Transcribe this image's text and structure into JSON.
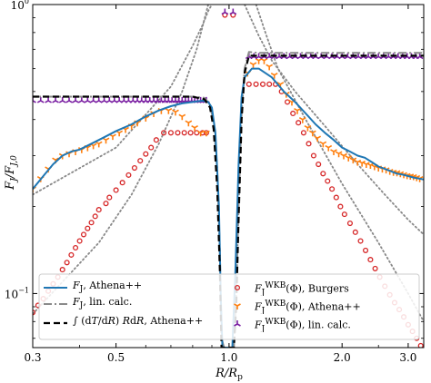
{
  "chart_data": {
    "type": "line",
    "xscale": "log",
    "yscale": "log",
    "xlim": [
      0.3,
      3.3
    ],
    "ylim": [
      0.065,
      1.0
    ],
    "xlabel": "R/R_p",
    "ylabel": "F_J/F_{J,0}",
    "xticks": [
      {
        "value": 0.3,
        "label": "0.3"
      },
      {
        "value": 0.5,
        "label": "0.5"
      },
      {
        "value": 1.0,
        "label": "1.0"
      },
      {
        "value": 2.0,
        "label": "2.0"
      },
      {
        "value": 3.0,
        "label": "3.0"
      }
    ],
    "yticks": [
      {
        "value": 0.1,
        "label": "10",
        "exponent": "−1"
      },
      {
        "value": 1.0,
        "label": "10",
        "exponent": "0"
      }
    ],
    "legend_position": "lower center",
    "series": [
      {
        "name": "F_J, Athena++",
        "legend_html": "𝐹<sub>J</sub>, Athena++",
        "kind": "line",
        "color": "#1f77b4",
        "dash": "none",
        "width": 2,
        "x": [
          0.3,
          0.32,
          0.34,
          0.36,
          0.38,
          0.4,
          0.43,
          0.46,
          0.5,
          0.55,
          0.6,
          0.65,
          0.7,
          0.75,
          0.8,
          0.85,
          0.88,
          0.9,
          0.92,
          0.94,
          0.95,
          0.96,
          0.97,
          0.98,
          1.0,
          1.02,
          1.04,
          1.06,
          1.08,
          1.1,
          1.15,
          1.2,
          1.3,
          1.4,
          1.5,
          1.6,
          1.7,
          1.8,
          1.9,
          2.0,
          2.1,
          2.2,
          2.3,
          2.4,
          2.5,
          2.6,
          2.7,
          2.8,
          2.9,
          3.0,
          3.1,
          3.2,
          3.3
        ],
        "y": [
          0.23,
          0.255,
          0.28,
          0.3,
          0.31,
          0.315,
          0.33,
          0.345,
          0.365,
          0.385,
          0.41,
          0.43,
          0.445,
          0.455,
          0.46,
          0.465,
          0.46,
          0.44,
          0.36,
          0.2,
          0.1,
          0.065,
          0.065,
          0.065,
          0.065,
          0.065,
          0.12,
          0.28,
          0.48,
          0.56,
          0.6,
          0.6,
          0.56,
          0.5,
          0.46,
          0.42,
          0.385,
          0.36,
          0.34,
          0.32,
          0.31,
          0.3,
          0.295,
          0.285,
          0.275,
          0.27,
          0.265,
          0.26,
          0.258,
          0.255,
          0.252,
          0.25,
          0.248
        ]
      },
      {
        "name": "F_J, lin. calc.",
        "legend_html": "𝐹<sub>J</sub>, lin. calc.",
        "kind": "line",
        "color": "#8a8a8a",
        "dash": "9,3,2,3",
        "width": 2,
        "x": [
          0.3,
          0.4,
          0.5,
          0.6,
          0.7,
          0.8,
          0.86,
          0.89,
          0.91,
          0.93,
          0.945,
          0.955,
          0.97,
          1.0,
          1.03,
          1.045,
          1.06,
          1.08,
          1.1,
          1.13,
          1.2,
          1.5,
          2.0,
          2.5,
          3.0,
          3.3
        ],
        "y": [
          0.48,
          0.48,
          0.48,
          0.48,
          0.48,
          0.48,
          0.475,
          0.45,
          0.39,
          0.27,
          0.14,
          0.07,
          0.065,
          0.065,
          0.065,
          0.1,
          0.2,
          0.42,
          0.6,
          0.685,
          0.68,
          0.68,
          0.68,
          0.68,
          0.68,
          0.68
        ]
      },
      {
        "name": "∫ dT/dR R dR, Athena++",
        "legend_html": "∫ (d𝑇/d𝑅) 𝑅d𝑅, Athena++",
        "kind": "line",
        "color": "#000000",
        "dash": "7,4",
        "width": 2.2,
        "x": [
          0.3,
          0.4,
          0.5,
          0.6,
          0.7,
          0.8,
          0.86,
          0.89,
          0.91,
          0.93,
          0.945,
          0.955,
          0.97,
          1.0,
          1.03,
          1.045,
          1.06,
          1.08,
          1.1,
          1.13,
          1.2,
          1.5,
          2.0,
          2.5,
          3.0,
          3.3
        ],
        "y": [
          0.48,
          0.48,
          0.48,
          0.48,
          0.48,
          0.48,
          0.47,
          0.44,
          0.37,
          0.23,
          0.12,
          0.065,
          0.065,
          0.065,
          0.065,
          0.09,
          0.18,
          0.4,
          0.58,
          0.665,
          0.665,
          0.665,
          0.665,
          0.665,
          0.665,
          0.665
        ]
      },
      {
        "name": "F_J^WKB(Φ), Burgers",
        "legend_html": "𝐹<sub>J</sub><sup>WKB</sup>(Φ), Burgers",
        "kind": "marker",
        "marker": "circle",
        "color": "#d62728",
        "x": [
          0.3,
          0.31,
          0.32,
          0.33,
          0.34,
          0.35,
          0.36,
          0.37,
          0.38,
          0.39,
          0.4,
          0.41,
          0.42,
          0.43,
          0.44,
          0.45,
          0.47,
          0.48,
          0.5,
          0.52,
          0.54,
          0.56,
          0.58,
          0.6,
          0.62,
          0.64,
          0.67,
          0.7,
          0.73,
          0.76,
          0.79,
          0.82,
          0.85,
          0.87,
          1.13,
          1.18,
          1.23,
          1.28,
          1.33,
          1.38,
          1.43,
          1.48,
          1.53,
          1.58,
          1.63,
          1.68,
          1.73,
          1.78,
          1.83,
          1.88,
          1.93,
          1.98,
          2.03,
          2.1,
          2.17,
          2.24,
          2.31,
          2.38,
          2.45,
          2.52,
          2.6,
          2.68,
          2.76,
          2.84,
          2.92,
          3.0,
          3.08,
          3.16,
          3.24
        ],
        "y": [
          0.086,
          0.091,
          0.096,
          0.102,
          0.108,
          0.114,
          0.121,
          0.128,
          0.136,
          0.144,
          0.152,
          0.16,
          0.168,
          0.176,
          0.185,
          0.195,
          0.205,
          0.215,
          0.228,
          0.242,
          0.257,
          0.272,
          0.288,
          0.304,
          0.32,
          0.34,
          0.36,
          0.36,
          0.36,
          0.36,
          0.36,
          0.36,
          0.36,
          0.36,
          0.53,
          0.53,
          0.53,
          0.53,
          0.53,
          0.5,
          0.46,
          0.42,
          0.39,
          0.36,
          0.33,
          0.3,
          0.28,
          0.26,
          0.245,
          0.23,
          0.215,
          0.2,
          0.188,
          0.175,
          0.163,
          0.152,
          0.141,
          0.131,
          0.122,
          0.114,
          0.106,
          0.099,
          0.093,
          0.088,
          0.083,
          0.078,
          0.074,
          0.07,
          0.066
        ]
      },
      {
        "name": "F_J^WKB(Φ), Athena++",
        "legend_html": "𝐹<sub>J</sub><sup>WKB</sup>(Φ), Athena++",
        "kind": "marker",
        "marker": "tri_down",
        "color": "#ff7f0e",
        "x": [
          0.3,
          0.315,
          0.33,
          0.345,
          0.36,
          0.375,
          0.39,
          0.405,
          0.42,
          0.435,
          0.45,
          0.47,
          0.49,
          0.51,
          0.53,
          0.55,
          0.57,
          0.6,
          0.63,
          0.66,
          0.69,
          0.72,
          0.75,
          0.78,
          0.81,
          0.84,
          0.87,
          1.12,
          1.16,
          1.2,
          1.24,
          1.28,
          1.32,
          1.37,
          1.42,
          1.47,
          1.52,
          1.57,
          1.62,
          1.67,
          1.72,
          1.78,
          1.84,
          1.9,
          1.96,
          2.02,
          2.08,
          2.14,
          2.2,
          2.26,
          2.32,
          2.38,
          2.44,
          2.5,
          2.56,
          2.62,
          2.68,
          2.74,
          2.8,
          2.86,
          2.92,
          2.98,
          3.04,
          3.1,
          3.16,
          3.22
        ],
        "y": [
          0.23,
          0.25,
          0.27,
          0.29,
          0.3,
          0.305,
          0.31,
          0.315,
          0.32,
          0.325,
          0.33,
          0.34,
          0.35,
          0.36,
          0.37,
          0.38,
          0.39,
          0.405,
          0.42,
          0.43,
          0.43,
          0.425,
          0.41,
          0.39,
          0.375,
          0.36,
          0.36,
          0.58,
          0.62,
          0.64,
          0.64,
          0.61,
          0.57,
          0.53,
          0.49,
          0.46,
          0.43,
          0.4,
          0.375,
          0.36,
          0.345,
          0.33,
          0.32,
          0.31,
          0.305,
          0.3,
          0.295,
          0.29,
          0.285,
          0.283,
          0.28,
          0.278,
          0.275,
          0.272,
          0.27,
          0.268,
          0.265,
          0.263,
          0.262,
          0.26,
          0.258,
          0.256,
          0.255,
          0.254,
          0.252,
          0.25
        ]
      },
      {
        "name": "F_J^WKB(Φ), lin. calc.",
        "legend_html": "𝐹<sub>J</sub><sup>WKB</sup>(Φ), lin. calc.",
        "kind": "marker",
        "marker": "tri_up",
        "color": "#7a1fa2",
        "x": [
          0.3,
          0.315,
          0.33,
          0.345,
          0.36,
          0.375,
          0.39,
          0.405,
          0.42,
          0.435,
          0.45,
          0.465,
          0.48,
          0.495,
          0.51,
          0.525,
          0.54,
          0.555,
          0.57,
          0.585,
          0.6,
          0.615,
          0.63,
          0.645,
          0.66,
          0.675,
          0.69,
          0.705,
          0.72,
          0.735,
          0.75,
          0.765,
          0.78,
          0.795,
          0.81,
          0.825,
          0.84,
          0.855,
          0.87,
          1.13,
          1.165,
          1.2,
          1.24,
          1.28,
          1.32,
          1.36,
          1.4,
          1.45,
          1.5,
          1.55,
          1.6,
          1.65,
          1.7,
          1.76,
          1.82,
          1.88,
          1.94,
          2.0,
          2.07,
          2.14,
          2.21,
          2.28,
          2.35,
          2.42,
          2.5,
          2.58,
          2.66,
          2.74,
          2.82,
          2.9,
          2.98,
          3.06,
          3.14,
          3.22
        ],
        "y": [
          0.465,
          0.465,
          0.465,
          0.465,
          0.465,
          0.465,
          0.465,
          0.465,
          0.465,
          0.465,
          0.465,
          0.465,
          0.465,
          0.465,
          0.465,
          0.465,
          0.465,
          0.465,
          0.465,
          0.465,
          0.465,
          0.465,
          0.465,
          0.465,
          0.465,
          0.465,
          0.465,
          0.465,
          0.465,
          0.465,
          0.465,
          0.465,
          0.465,
          0.465,
          0.465,
          0.465,
          0.465,
          0.465,
          0.465,
          0.66,
          0.66,
          0.66,
          0.66,
          0.66,
          0.66,
          0.66,
          0.66,
          0.66,
          0.66,
          0.66,
          0.66,
          0.66,
          0.66,
          0.66,
          0.66,
          0.66,
          0.66,
          0.66,
          0.66,
          0.66,
          0.66,
          0.66,
          0.66,
          0.66,
          0.66,
          0.66,
          0.66,
          0.66,
          0.66,
          0.66,
          0.66,
          0.66,
          0.66,
          0.66
        ]
      }
    ],
    "extra_markers": [
      {
        "marker": "circle",
        "color": "#d62728",
        "x": 0.975,
        "y": 0.92
      },
      {
        "marker": "circle",
        "color": "#d62728",
        "x": 1.025,
        "y": 0.92
      },
      {
        "marker": "tri_up",
        "color": "#7a1fa2",
        "x": 0.975,
        "y": 0.94
      },
      {
        "marker": "tri_up",
        "color": "#7a1fa2",
        "x": 1.025,
        "y": 0.94
      }
    ],
    "reference_curves": {
      "color": "#888888",
      "style": "dotted",
      "left": [
        {
          "x": [
            0.3,
            0.5,
            0.7,
            0.8,
            0.85,
            0.88,
            0.9
          ],
          "y": [
            0.22,
            0.32,
            0.52,
            0.72,
            0.85,
            0.95,
            1.0
          ]
        },
        {
          "x": [
            0.3,
            0.45,
            0.55,
            0.65,
            0.75,
            0.82,
            0.88
          ],
          "y": [
            0.085,
            0.15,
            0.22,
            0.33,
            0.5,
            0.7,
            1.0
          ]
        }
      ],
      "right": [
        {
          "x": [
            1.1,
            1.15,
            1.2,
            1.3,
            1.5,
            1.8,
            2.2,
            2.6,
            3.0,
            3.3
          ],
          "y": [
            1.0,
            0.88,
            0.78,
            0.64,
            0.5,
            0.38,
            0.28,
            0.22,
            0.18,
            0.16
          ]
        },
        {
          "x": [
            1.18,
            1.25,
            1.35,
            1.6,
            2.0,
            2.5,
            3.0,
            3.3
          ],
          "y": [
            1.0,
            0.8,
            0.6,
            0.4,
            0.24,
            0.15,
            0.1,
            0.08
          ]
        }
      ]
    }
  }
}
